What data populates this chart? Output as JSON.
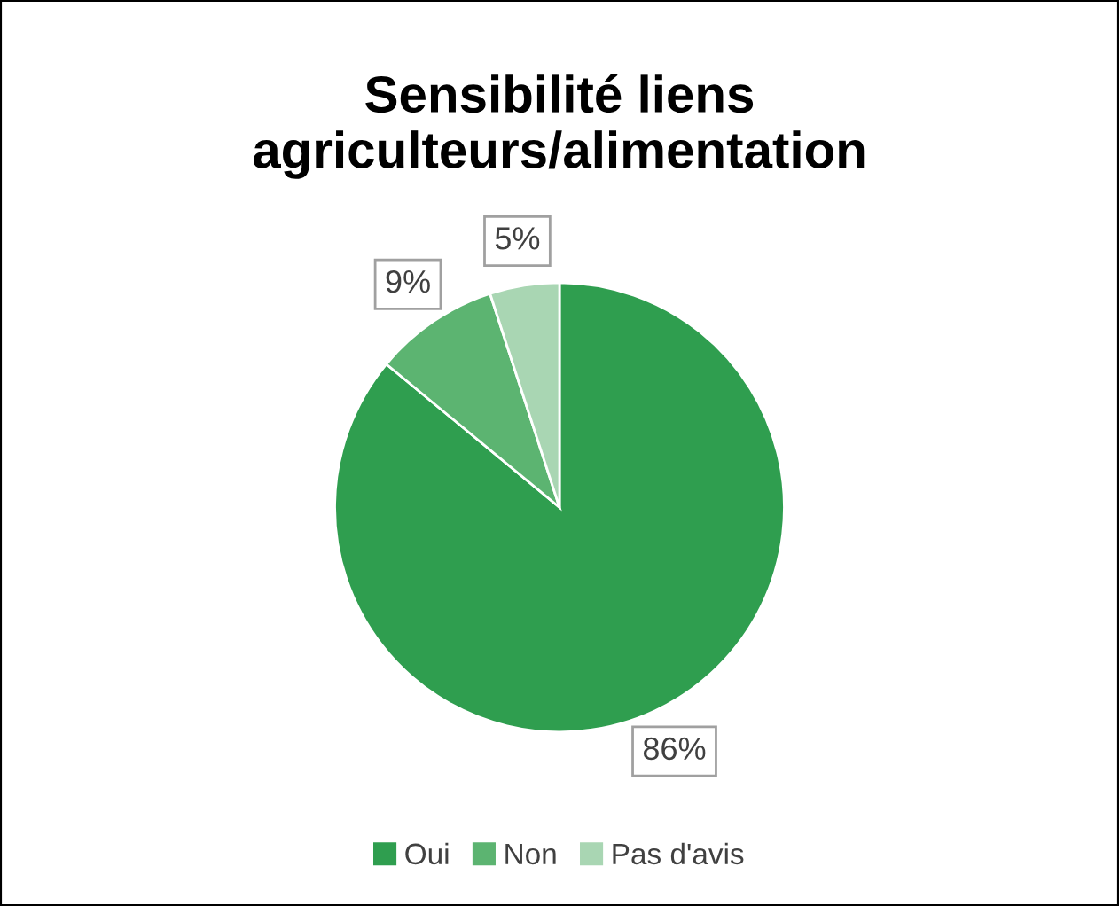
{
  "chart_data": {
    "type": "pie",
    "title": "Sensibilité liens\nagriculteurs/alimentation",
    "categories": [
      "Oui",
      "Non",
      "Pas d'avis"
    ],
    "values": [
      86,
      9,
      5
    ],
    "colors": [
      "#2f9e4f",
      "#5cb471",
      "#a9d6b3"
    ],
    "value_labels": [
      "86%",
      "9%",
      "5%"
    ],
    "legend": "bottom"
  }
}
